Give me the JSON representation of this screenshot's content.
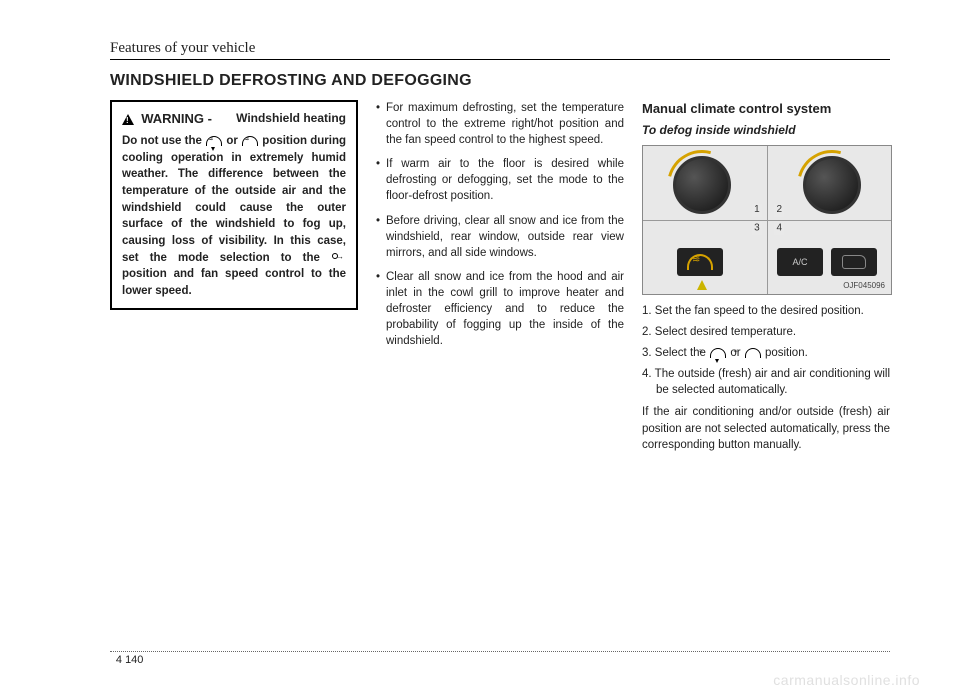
{
  "header": "Features of your vehicle",
  "section_title": "WINDSHIELD DEFROSTING AND DEFOGGING",
  "warning": {
    "label": "WARNING -",
    "subject": "Windshield heating",
    "body_pre": "Do not use the ",
    "body_mid": " or ",
    "body_post": " position during cooling operation in extremely humid weather. The difference between the temperature of the outside air and the windshield could cause the outer surface of the windshield to fog up, causing loss of visibility. In this case, set the mode selection to the ",
    "body_end": " position and fan speed control to the lower speed."
  },
  "bullets": [
    "For maximum defrosting, set the temperature control to the extreme right/hot position and the fan speed control to the highest speed.",
    "If warm air to the floor is desired while defrosting or defogging, set the mode to the floor-defrost position.",
    "Before driving, clear all snow and ice from the windshield, rear window, outside rear view mirrors, and all side windows.",
    "Clear all snow and ice from the hood and air inlet in the cowl grill to improve heater and defroster efficiency and to reduce the probability of fogging up the inside of the windshield."
  ],
  "col3": {
    "title": "Manual climate control system",
    "subtitle": "To defog inside windshield",
    "fig_code": "OJF045096",
    "fignums": {
      "n1": "1",
      "n2": "2",
      "n3": "3",
      "n4": "4"
    },
    "ac_label": "A/C",
    "steps": [
      "1. Set the fan speed to the desired position.",
      "2. Select desired temperature.",
      {
        "pre": "3. Select the ",
        "mid": " or ",
        "post": " position."
      },
      "4. The outside (fresh) air and air conditioning will be selected automatically."
    ],
    "note": "If the air conditioning and/or outside (fresh) air position are not selected automatically, press the corresponding button manually."
  },
  "footer": {
    "chapter": "4",
    "page": "140"
  },
  "watermark": "carmanualsonline.info"
}
